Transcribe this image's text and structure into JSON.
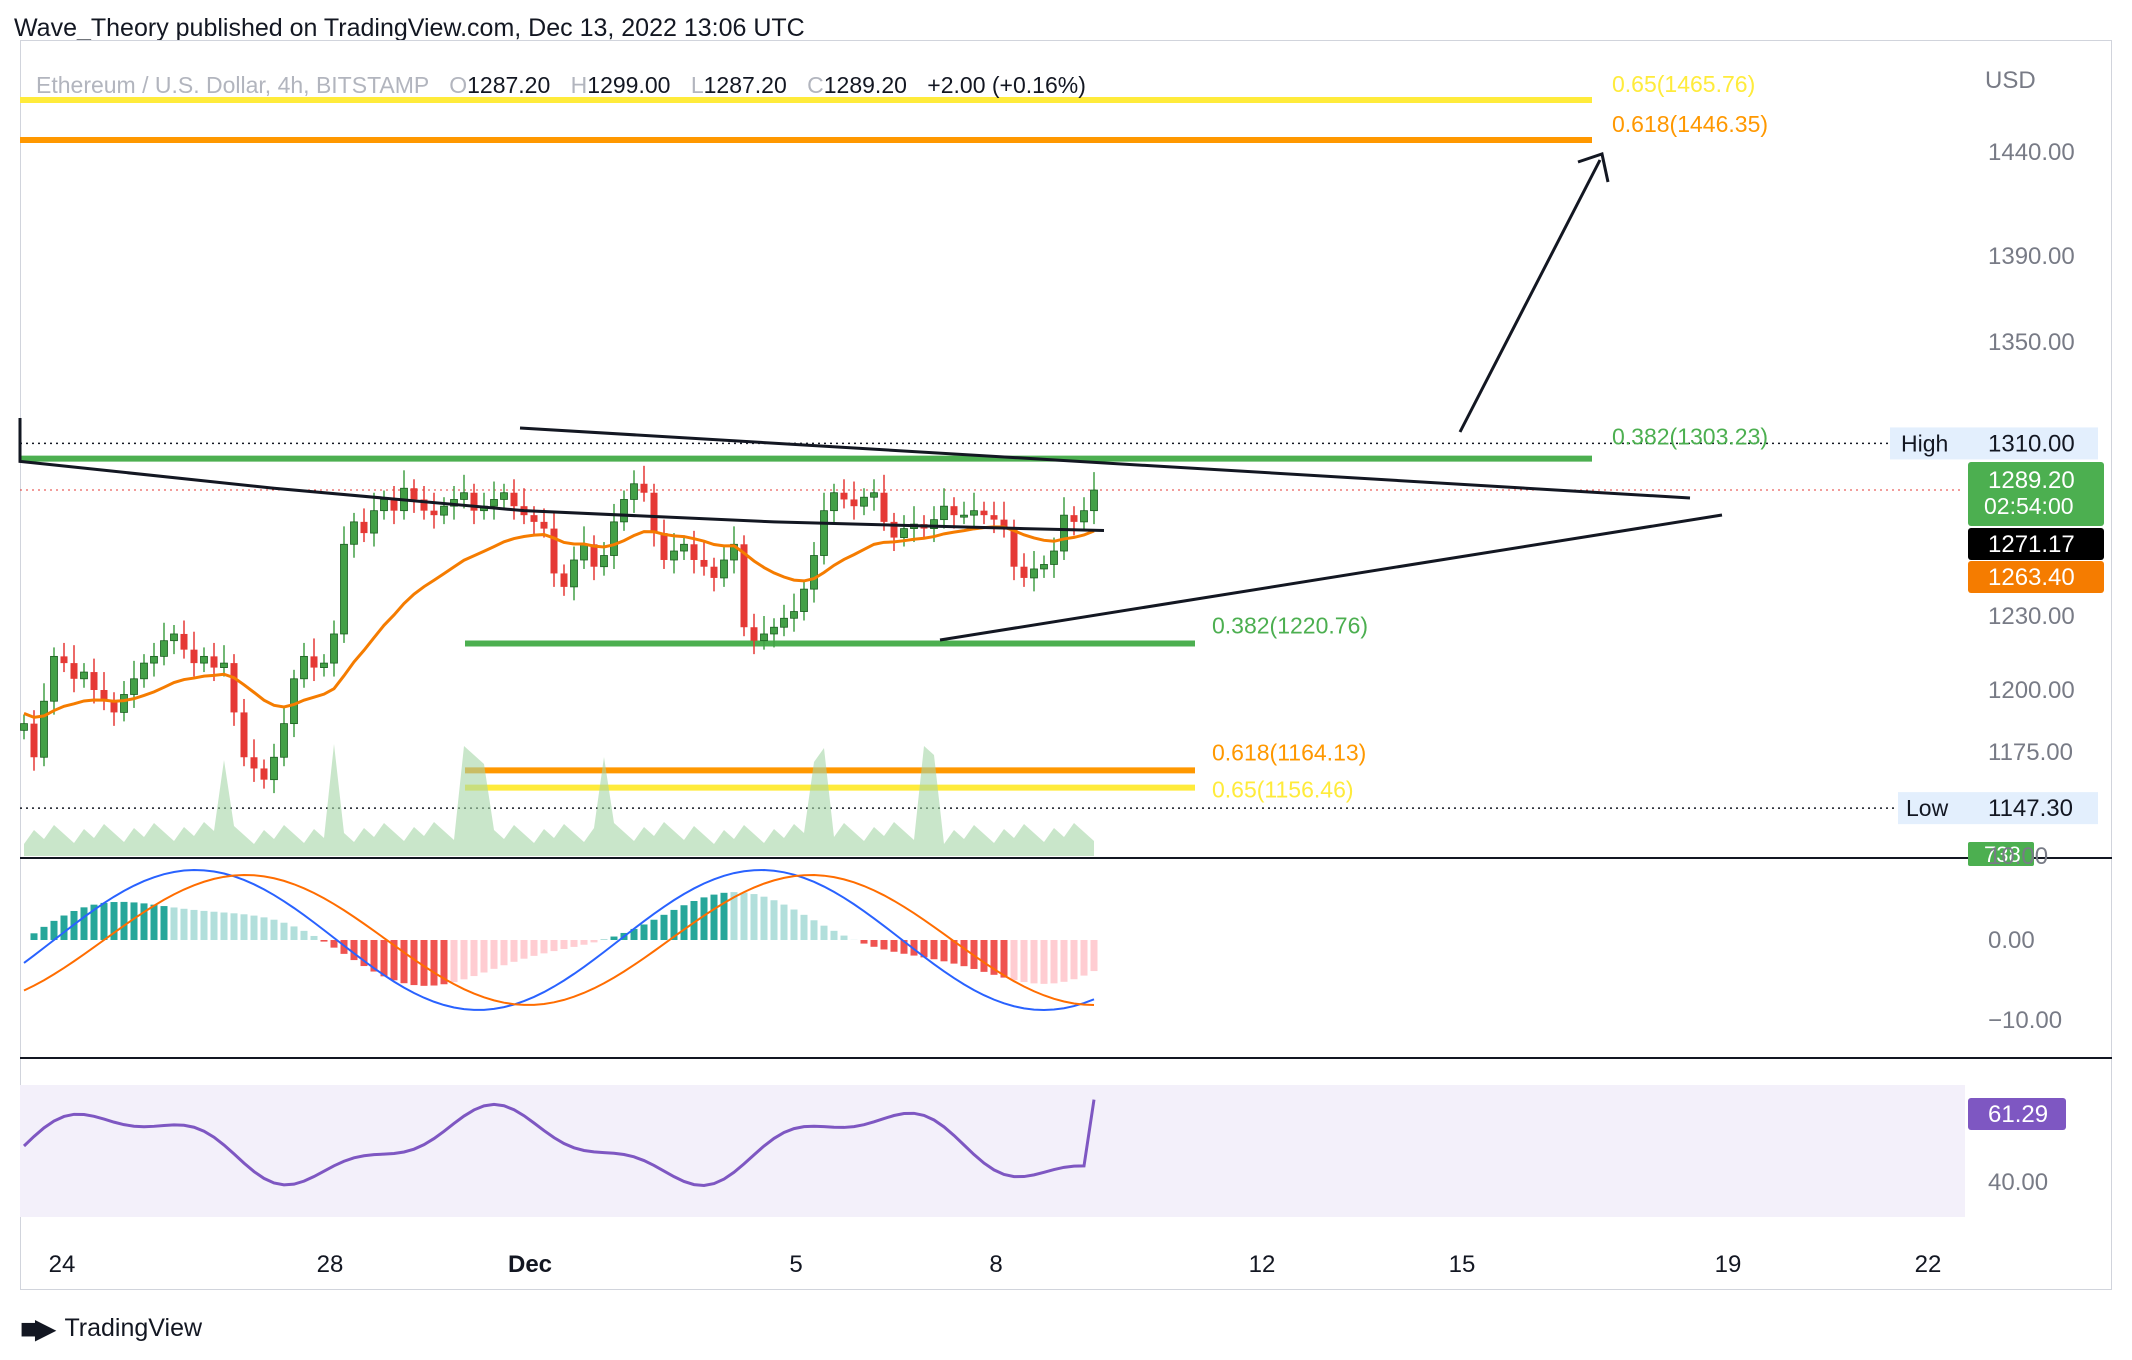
{
  "header": {
    "published": "Wave_Theory published on TradingView.com, Dec 13, 2022 13:06 UTC"
  },
  "legend": {
    "symbol": "Ethereum / U.S. Dollar, 4h, BITSTAMP",
    "o_key": "O",
    "o_val": "1287.20",
    "h_key": "H",
    "h_val": "1299.00",
    "l_key": "L",
    "l_val": "1287.20",
    "c_key": "C",
    "c_val": "1289.20",
    "change": "+2.00 (+0.16%)"
  },
  "footer": {
    "brand": "TradingView"
  },
  "colors": {
    "up": "#26a69a",
    "up_body": "#43a047",
    "down": "#e53935",
    "ema": "#f57c00",
    "sma": "#131722",
    "fib_green": "#4caf50",
    "fib_orange": "#ff9800",
    "fib_yellow": "#ffeb3b",
    "macd": "#2962ff",
    "signal": "#ff6d00",
    "rsi": "#7e57c2",
    "vol_up": "#a5d6a7",
    "vol_down": "#f8b6bd"
  },
  "chart_data": [
    {
      "type": "candlestick",
      "pane": "price",
      "currency": "USD",
      "y_ticks": [
        "1440.00",
        "1390.00",
        "1350.00",
        "1230.00",
        "1200.00",
        "1175.00"
      ],
      "x_ticks": [
        "24",
        "28",
        "Dec",
        "5",
        "8",
        "12",
        "15",
        "19",
        "22"
      ],
      "fib_levels": [
        {
          "label": "0.65(1465.76)",
          "value": 1465.76,
          "color": "#ffeb3b"
        },
        {
          "label": "0.618(1446.35)",
          "value": 1446.35,
          "color": "#ff9800"
        },
        {
          "label": "0.382(1303.23)",
          "value": 1303.23,
          "color": "#4caf50"
        },
        {
          "label": "0.382(1220.76)",
          "value": 1220.76,
          "color": "#4caf50"
        },
        {
          "label": "0.618(1164.13)",
          "value": 1164.13,
          "color": "#ff9800"
        },
        {
          "label": "0.65(1156.46)",
          "value": 1156.46,
          "color": "#ffeb3b"
        }
      ],
      "high": {
        "label": "High",
        "value": "1310.00"
      },
      "low": {
        "label": "Low",
        "value": "1147.30"
      },
      "price_tags": [
        {
          "value": "1289.20",
          "sub": "02:54:00",
          "color": "#4caf50"
        },
        {
          "value": "1271.17",
          "color": "#000000"
        },
        {
          "value": "1263.40",
          "color": "#f57c00"
        }
      ],
      "volume_tag": "738",
      "closes": [
        1185,
        1170,
        1195,
        1215,
        1212,
        1205,
        1208,
        1200,
        1195,
        1190,
        1198,
        1205,
        1212,
        1215,
        1222,
        1225,
        1218,
        1212,
        1215,
        1210,
        1212,
        1190,
        1170,
        1165,
        1160,
        1170,
        1185,
        1205,
        1215,
        1210,
        1212,
        1225,
        1265,
        1275,
        1270,
        1280,
        1285,
        1280,
        1290,
        1285,
        1280,
        1278,
        1282,
        1285,
        1288,
        1280,
        1282,
        1285,
        1288,
        1282,
        1278,
        1275,
        1272,
        1252,
        1246,
        1258,
        1265,
        1255,
        1260,
        1275,
        1285,
        1292,
        1288,
        1270,
        1258,
        1262,
        1265,
        1258,
        1255,
        1250,
        1258,
        1265,
        1228,
        1222,
        1225,
        1228,
        1232,
        1235,
        1245,
        1260,
        1280,
        1288,
        1285,
        1282,
        1286,
        1288,
        1275,
        1268,
        1272,
        1274,
        1272,
        1276,
        1282,
        1278,
        1278,
        1280,
        1278,
        1276,
        1272,
        1255,
        1250,
        1254,
        1256,
        1262,
        1278,
        1275,
        1280,
        1289.2
      ],
      "sma200": {
        "start": 1302,
        "points": [
          [
            0,
            1302
          ],
          [
            25,
            1290
          ],
          [
            50,
            1280
          ],
          [
            75,
            1275
          ],
          [
            100,
            1272
          ],
          [
            108,
            1271.17
          ]
        ]
      },
      "ema50_start": 1190,
      "triangle_upper": [
        [
          1303.23,
          "x-start"
        ],
        [
          1280,
          "x-end"
        ]
      ],
      "triangle_lower": [
        [
          1220.76,
          "x-start"
        ],
        [
          1265,
          "x-end"
        ]
      ],
      "projection_target": 1446.35
    },
    {
      "type": "bar",
      "pane": "macd",
      "y_ticks": [
        "10.00",
        "0.00",
        "−10.00"
      ]
    },
    {
      "type": "line",
      "pane": "rsi",
      "value_tag": "61.29",
      "y_ticks": [
        "40.00"
      ]
    }
  ]
}
